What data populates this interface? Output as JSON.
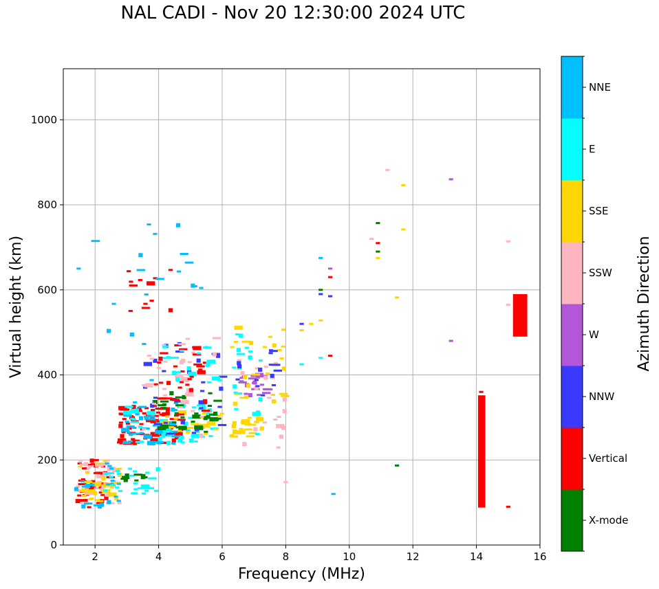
{
  "chart_data": {
    "type": "scatter",
    "title": "NAL CADI - Nov 20 12:30:00 2024 UTC",
    "xlabel": "Frequency (MHz)",
    "ylabel": "Virtual height (km)",
    "xlim": [
      1,
      16
    ],
    "ylim": [
      0,
      1120
    ],
    "xticks": [
      2,
      4,
      6,
      8,
      10,
      12,
      14,
      16
    ],
    "yticks": [
      0,
      200,
      400,
      600,
      800,
      1000
    ],
    "grid": true,
    "colorbar": {
      "title": "Azimuth Direction",
      "categories": [
        {
          "name": "X-mode",
          "color": "#008000"
        },
        {
          "name": "Vertical",
          "color": "#ff0000"
        },
        {
          "name": "NNW",
          "color": "#3a3aff"
        },
        {
          "name": "W",
          "color": "#b356d8"
        },
        {
          "name": "SSW",
          "color": "#ffb6c1"
        },
        {
          "name": "SSE",
          "color": "#ffd700"
        },
        {
          "name": "E",
          "color": "#00ffff"
        },
        {
          "name": "NNE",
          "color": "#00bfff"
        }
      ]
    },
    "clusters": [
      {
        "direction": "Vertical",
        "fmin": 1.4,
        "fmax": 2.6,
        "hmin": 88,
        "hmax": 205,
        "count": 45
      },
      {
        "direction": "SSW",
        "fmin": 1.4,
        "fmax": 2.8,
        "hmin": 95,
        "hmax": 200,
        "count": 35
      },
      {
        "direction": "SSE",
        "fmin": 1.5,
        "fmax": 2.8,
        "hmin": 100,
        "hmax": 200,
        "count": 25
      },
      {
        "direction": "NNE",
        "fmin": 1.4,
        "fmax": 2.8,
        "hmin": 90,
        "hmax": 200,
        "count": 20
      },
      {
        "direction": "E",
        "fmin": 2.2,
        "fmax": 4.0,
        "hmin": 120,
        "hmax": 180,
        "count": 25
      },
      {
        "direction": "X-mode",
        "fmin": 2.8,
        "fmax": 3.6,
        "hmin": 140,
        "hmax": 170,
        "count": 12
      },
      {
        "direction": "Vertical",
        "fmin": 2.8,
        "fmax": 4.8,
        "hmin": 235,
        "hmax": 330,
        "count": 90
      },
      {
        "direction": "NNE",
        "fmin": 2.8,
        "fmax": 4.6,
        "hmin": 230,
        "hmax": 340,
        "count": 45
      },
      {
        "direction": "E",
        "fmin": 2.9,
        "fmax": 5.8,
        "hmin": 240,
        "hmax": 330,
        "count": 50
      },
      {
        "direction": "SSE",
        "fmin": 4.0,
        "fmax": 6.0,
        "hmin": 260,
        "hmax": 320,
        "count": 25
      },
      {
        "direction": "X-mode",
        "fmin": 3.8,
        "fmax": 6.0,
        "hmin": 265,
        "hmax": 360,
        "count": 35
      },
      {
        "direction": "NNW",
        "fmin": 3.5,
        "fmax": 6.1,
        "hmin": 260,
        "hmax": 480,
        "count": 30
      },
      {
        "direction": "SSW",
        "fmin": 3.5,
        "fmax": 6.0,
        "hmin": 250,
        "hmax": 500,
        "count": 30
      },
      {
        "direction": "Vertical",
        "fmin": 3.8,
        "fmax": 5.5,
        "hmin": 300,
        "hmax": 470,
        "count": 30
      },
      {
        "direction": "E",
        "fmin": 4.0,
        "fmax": 6.0,
        "hmin": 380,
        "hmax": 480,
        "count": 20
      },
      {
        "direction": "SSE",
        "fmin": 6.3,
        "fmax": 7.4,
        "hmin": 255,
        "hmax": 300,
        "count": 25
      },
      {
        "direction": "W",
        "fmin": 6.5,
        "fmax": 7.5,
        "hmin": 350,
        "hmax": 400,
        "count": 20
      },
      {
        "direction": "SSE",
        "fmin": 6.3,
        "fmax": 8.0,
        "hmin": 330,
        "hmax": 515,
        "count": 25
      },
      {
        "direction": "E",
        "fmin": 6.3,
        "fmax": 7.4,
        "hmin": 215,
        "hmax": 500,
        "count": 18
      },
      {
        "direction": "SSW",
        "fmin": 6.5,
        "fmax": 8.0,
        "hmin": 215,
        "hmax": 470,
        "count": 20
      },
      {
        "direction": "NNW",
        "fmin": 6.4,
        "fmax": 7.8,
        "hmin": 340,
        "hmax": 470,
        "count": 15
      },
      {
        "direction": "Vertical",
        "fmin": 3.0,
        "fmax": 4.6,
        "hmin": 535,
        "hmax": 655,
        "count": 12
      },
      {
        "direction": "NNE",
        "fmin": 1.4,
        "fmax": 4.0,
        "hmin": 350,
        "hmax": 770,
        "count": 12
      },
      {
        "direction": "NNE",
        "fmin": 4.0,
        "fmax": 6.0,
        "hmin": 575,
        "hmax": 760,
        "count": 8
      }
    ],
    "points": [
      {
        "f": 8.5,
        "h": 425,
        "direction": "E"
      },
      {
        "f": 9.1,
        "h": 440,
        "direction": "E"
      },
      {
        "f": 9.1,
        "h": 600,
        "direction": "X-mode"
      },
      {
        "f": 9.1,
        "h": 590,
        "direction": "NNW"
      },
      {
        "f": 9.1,
        "h": 675,
        "direction": "NNE"
      },
      {
        "f": 9.4,
        "h": 630,
        "direction": "Vertical"
      },
      {
        "f": 9.4,
        "h": 650,
        "direction": "W"
      },
      {
        "f": 9.4,
        "h": 585,
        "direction": "NNW"
      },
      {
        "f": 9.4,
        "h": 445,
        "direction": "Vertical"
      },
      {
        "f": 9.1,
        "h": 528,
        "direction": "SSE"
      },
      {
        "f": 8.8,
        "h": 520,
        "direction": "SSE"
      },
      {
        "f": 8.5,
        "h": 505,
        "direction": "SSE"
      },
      {
        "f": 8.5,
        "h": 520,
        "direction": "NNW"
      },
      {
        "f": 8.0,
        "h": 148,
        "direction": "SSW"
      },
      {
        "f": 9.5,
        "h": 120,
        "direction": "NNE"
      },
      {
        "f": 10.7,
        "h": 720,
        "direction": "SSW"
      },
      {
        "f": 10.9,
        "h": 710,
        "direction": "Vertical"
      },
      {
        "f": 10.9,
        "h": 757,
        "direction": "X-mode"
      },
      {
        "f": 10.9,
        "h": 690,
        "direction": "X-mode"
      },
      {
        "f": 10.9,
        "h": 675,
        "direction": "SSE"
      },
      {
        "f": 11.2,
        "h": 882,
        "direction": "SSW"
      },
      {
        "f": 11.7,
        "h": 846,
        "direction": "SSE"
      },
      {
        "f": 11.7,
        "h": 742,
        "direction": "SSE"
      },
      {
        "f": 11.5,
        "h": 582,
        "direction": "SSE"
      },
      {
        "f": 11.5,
        "h": 187,
        "direction": "X-mode"
      },
      {
        "f": 13.2,
        "h": 860,
        "direction": "W"
      },
      {
        "f": 13.2,
        "h": 480,
        "direction": "W"
      },
      {
        "f": 15.0,
        "h": 714,
        "direction": "SSW"
      },
      {
        "f": 15.0,
        "h": 565,
        "direction": "SSW"
      },
      {
        "f": 15.0,
        "h": 90,
        "direction": "Vertical"
      },
      {
        "f": 14.15,
        "h": 360,
        "direction": "Vertical"
      }
    ],
    "bars": [
      {
        "direction": "Vertical",
        "f0": 14.05,
        "f1": 14.28,
        "h0": 88,
        "h1": 352
      },
      {
        "direction": "Vertical",
        "f0": 15.15,
        "f1": 15.6,
        "h0": 490,
        "h1": 590
      }
    ]
  }
}
